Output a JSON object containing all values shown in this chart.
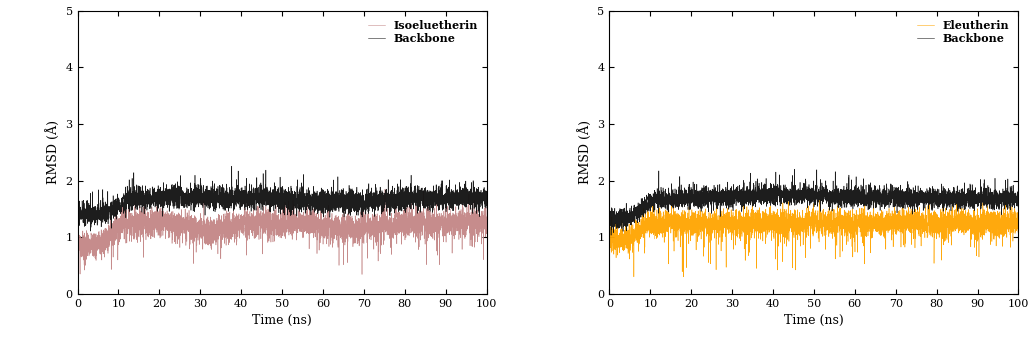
{
  "xlim": [
    0,
    100
  ],
  "ylim": [
    0,
    5
  ],
  "yticks": [
    0,
    1,
    2,
    3,
    4,
    5
  ],
  "xticks": [
    0,
    10,
    20,
    30,
    40,
    50,
    60,
    70,
    80,
    90,
    100
  ],
  "xlabel": "Time (ns)",
  "ylabel": "RMSD (Å)",
  "panel_A": {
    "ligand_label": "Isoeluetherin",
    "ligand_color": "#c08080",
    "backbone_label": "Backbone",
    "backbone_color": "#111111"
  },
  "panel_B": {
    "ligand_label": "Eleutherin",
    "ligand_color": "#FFA500",
    "backbone_label": "Backbone",
    "backbone_color": "#111111"
  },
  "figsize": [
    10.34,
    3.54
  ],
  "dpi": 100,
  "legend_fontsize": 8,
  "axis_fontsize": 9,
  "tick_fontsize": 8,
  "linewidth": 0.4
}
